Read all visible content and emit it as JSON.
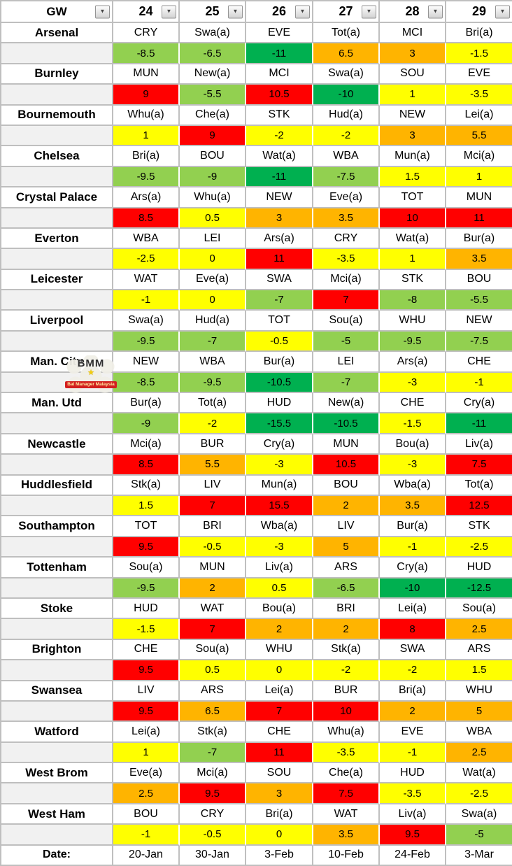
{
  "header": {
    "gw_label": "GW",
    "gameweeks": [
      "24",
      "25",
      "26",
      "27",
      "28",
      "29"
    ],
    "dropdown_icon": "▼"
  },
  "colors": {
    "red": "#FF0000",
    "orange": "#FFB400",
    "yellow": "#FFFF00",
    "light_green": "#92D050",
    "dark_green": "#00B050",
    "spacer_grey": "#F1F1F1",
    "grid_grey": "#BFBFBF"
  },
  "teams": [
    {
      "name": "Arsenal",
      "fixtures": [
        {
          "opp": "CRY",
          "val": "-8.5",
          "level": "light_green"
        },
        {
          "opp": "Swa(a)",
          "val": "-6.5",
          "level": "light_green"
        },
        {
          "opp": "EVE",
          "val": "-11",
          "level": "dark_green"
        },
        {
          "opp": "Tot(a)",
          "val": "6.5",
          "level": "orange"
        },
        {
          "opp": "MCI",
          "val": "3",
          "level": "orange"
        },
        {
          "opp": "Bri(a)",
          "val": "-1.5",
          "level": "yellow"
        }
      ]
    },
    {
      "name": "Burnley",
      "fixtures": [
        {
          "opp": "MUN",
          "val": "9",
          "level": "red"
        },
        {
          "opp": "New(a)",
          "val": "-5.5",
          "level": "light_green"
        },
        {
          "opp": "MCI",
          "val": "10.5",
          "level": "red"
        },
        {
          "opp": "Swa(a)",
          "val": "-10",
          "level": "dark_green"
        },
        {
          "opp": "SOU",
          "val": "1",
          "level": "yellow"
        },
        {
          "opp": "EVE",
          "val": "-3.5",
          "level": "yellow"
        }
      ]
    },
    {
      "name": "Bournemouth",
      "fixtures": [
        {
          "opp": "Whu(a)",
          "val": "1",
          "level": "yellow"
        },
        {
          "opp": "Che(a)",
          "val": "9",
          "level": "red"
        },
        {
          "opp": "STK",
          "val": "-2",
          "level": "yellow"
        },
        {
          "opp": "Hud(a)",
          "val": "-2",
          "level": "yellow"
        },
        {
          "opp": "NEW",
          "val": "3",
          "level": "orange"
        },
        {
          "opp": "Lei(a)",
          "val": "5.5",
          "level": "orange"
        }
      ]
    },
    {
      "name": "Chelsea",
      "fixtures": [
        {
          "opp": "Bri(a)",
          "val": "-9.5",
          "level": "light_green"
        },
        {
          "opp": "BOU",
          "val": "-9",
          "level": "light_green"
        },
        {
          "opp": "Wat(a)",
          "val": "-11",
          "level": "dark_green"
        },
        {
          "opp": "WBA",
          "val": "-7.5",
          "level": "light_green"
        },
        {
          "opp": "Mun(a)",
          "val": "1.5",
          "level": "yellow"
        },
        {
          "opp": "Mci(a)",
          "val": "1",
          "level": "yellow"
        }
      ]
    },
    {
      "name": "Crystal Palace",
      "fixtures": [
        {
          "opp": "Ars(a)",
          "val": "8.5",
          "level": "red"
        },
        {
          "opp": "Whu(a)",
          "val": "0.5",
          "level": "yellow"
        },
        {
          "opp": "NEW",
          "val": "3",
          "level": "orange"
        },
        {
          "opp": "Eve(a)",
          "val": "3.5",
          "level": "orange"
        },
        {
          "opp": "TOT",
          "val": "10",
          "level": "red"
        },
        {
          "opp": "MUN",
          "val": "11",
          "level": "red"
        }
      ]
    },
    {
      "name": "Everton",
      "fixtures": [
        {
          "opp": "WBA",
          "val": "-2.5",
          "level": "yellow"
        },
        {
          "opp": "LEI",
          "val": "0",
          "level": "yellow"
        },
        {
          "opp": "Ars(a)",
          "val": "11",
          "level": "red"
        },
        {
          "opp": "CRY",
          "val": "-3.5",
          "level": "yellow"
        },
        {
          "opp": "Wat(a)",
          "val": "1",
          "level": "yellow"
        },
        {
          "opp": "Bur(a)",
          "val": "3.5",
          "level": "orange"
        }
      ]
    },
    {
      "name": "Leicester",
      "fixtures": [
        {
          "opp": "WAT",
          "val": "-1",
          "level": "yellow"
        },
        {
          "opp": "Eve(a)",
          "val": "0",
          "level": "yellow"
        },
        {
          "opp": "SWA",
          "val": "-7",
          "level": "light_green"
        },
        {
          "opp": "Mci(a)",
          "val": "7",
          "level": "red"
        },
        {
          "opp": "STK",
          "val": "-8",
          "level": "light_green"
        },
        {
          "opp": "BOU",
          "val": "-5.5",
          "level": "light_green"
        }
      ]
    },
    {
      "name": "Liverpool",
      "fixtures": [
        {
          "opp": "Swa(a)",
          "val": "-9.5",
          "level": "light_green"
        },
        {
          "opp": "Hud(a)",
          "val": "-7",
          "level": "light_green"
        },
        {
          "opp": "TOT",
          "val": "-0.5",
          "level": "yellow"
        },
        {
          "opp": "Sou(a)",
          "val": "-5",
          "level": "light_green"
        },
        {
          "opp": "WHU",
          "val": "-9.5",
          "level": "light_green"
        },
        {
          "opp": "NEW",
          "val": "-7.5",
          "level": "light_green"
        }
      ]
    },
    {
      "name": "Man. City",
      "fixtures": [
        {
          "opp": "NEW",
          "val": "-8.5",
          "level": "light_green"
        },
        {
          "opp": "WBA",
          "val": "-9.5",
          "level": "light_green"
        },
        {
          "opp": "Bur(a)",
          "val": "-10.5",
          "level": "dark_green"
        },
        {
          "opp": "LEI",
          "val": "-7",
          "level": "light_green"
        },
        {
          "opp": "Ars(a)",
          "val": "-3",
          "level": "yellow"
        },
        {
          "opp": "CHE",
          "val": "-1",
          "level": "yellow"
        }
      ]
    },
    {
      "name": "Man. Utd",
      "fixtures": [
        {
          "opp": "Bur(a)",
          "val": "-9",
          "level": "light_green"
        },
        {
          "opp": "Tot(a)",
          "val": "-2",
          "level": "yellow"
        },
        {
          "opp": "HUD",
          "val": "-15.5",
          "level": "dark_green"
        },
        {
          "opp": "New(a)",
          "val": "-10.5",
          "level": "dark_green"
        },
        {
          "opp": "CHE",
          "val": "-1.5",
          "level": "yellow"
        },
        {
          "opp": "Cry(a)",
          "val": "-11",
          "level": "dark_green"
        }
      ]
    },
    {
      "name": "Newcastle",
      "fixtures": [
        {
          "opp": "Mci(a)",
          "val": "8.5",
          "level": "red"
        },
        {
          "opp": "BUR",
          "val": "5.5",
          "level": "orange"
        },
        {
          "opp": "Cry(a)",
          "val": "-3",
          "level": "yellow"
        },
        {
          "opp": "MUN",
          "val": "10.5",
          "level": "red"
        },
        {
          "opp": "Bou(a)",
          "val": "-3",
          "level": "yellow"
        },
        {
          "opp": "Liv(a)",
          "val": "7.5",
          "level": "red"
        }
      ]
    },
    {
      "name": "Huddlesfield",
      "fixtures": [
        {
          "opp": "Stk(a)",
          "val": "1.5",
          "level": "yellow"
        },
        {
          "opp": "LIV",
          "val": "7",
          "level": "red"
        },
        {
          "opp": "Mun(a)",
          "val": "15.5",
          "level": "red"
        },
        {
          "opp": "BOU",
          "val": "2",
          "level": "orange"
        },
        {
          "opp": "Wba(a)",
          "val": "3.5",
          "level": "orange"
        },
        {
          "opp": "Tot(a)",
          "val": "12.5",
          "level": "red"
        }
      ]
    },
    {
      "name": "Southampton",
      "fixtures": [
        {
          "opp": "TOT",
          "val": "9.5",
          "level": "red"
        },
        {
          "opp": "BRI",
          "val": "-0.5",
          "level": "yellow"
        },
        {
          "opp": "Wba(a)",
          "val": "-3",
          "level": "yellow"
        },
        {
          "opp": "LIV",
          "val": "5",
          "level": "orange"
        },
        {
          "opp": "Bur(a)",
          "val": "-1",
          "level": "yellow"
        },
        {
          "opp": "STK",
          "val": "-2.5",
          "level": "yellow"
        }
      ]
    },
    {
      "name": "Tottenham",
      "fixtures": [
        {
          "opp": "Sou(a)",
          "val": "-9.5",
          "level": "light_green"
        },
        {
          "opp": "MUN",
          "val": "2",
          "level": "orange"
        },
        {
          "opp": "Liv(a)",
          "val": "0.5",
          "level": "yellow"
        },
        {
          "opp": "ARS",
          "val": "-6.5",
          "level": "light_green"
        },
        {
          "opp": "Cry(a)",
          "val": "-10",
          "level": "dark_green"
        },
        {
          "opp": "HUD",
          "val": "-12.5",
          "level": "dark_green"
        }
      ]
    },
    {
      "name": "Stoke",
      "fixtures": [
        {
          "opp": "HUD",
          "val": "-1.5",
          "level": "yellow"
        },
        {
          "opp": "WAT",
          "val": "7",
          "level": "red"
        },
        {
          "opp": "Bou(a)",
          "val": "2",
          "level": "orange"
        },
        {
          "opp": "BRI",
          "val": "2",
          "level": "orange"
        },
        {
          "opp": "Lei(a)",
          "val": "8",
          "level": "red"
        },
        {
          "opp": "Sou(a)",
          "val": "2.5",
          "level": "orange"
        }
      ]
    },
    {
      "name": "Brighton",
      "fixtures": [
        {
          "opp": "CHE",
          "val": "9.5",
          "level": "red"
        },
        {
          "opp": "Sou(a)",
          "val": "0.5",
          "level": "yellow"
        },
        {
          "opp": "WHU",
          "val": "0",
          "level": "yellow"
        },
        {
          "opp": "Stk(a)",
          "val": "-2",
          "level": "yellow"
        },
        {
          "opp": "SWA",
          "val": "-2",
          "level": "yellow"
        },
        {
          "opp": "ARS",
          "val": "1.5",
          "level": "yellow"
        }
      ]
    },
    {
      "name": "Swansea",
      "fixtures": [
        {
          "opp": "LIV",
          "val": "9.5",
          "level": "red"
        },
        {
          "opp": "ARS",
          "val": "6.5",
          "level": "orange"
        },
        {
          "opp": "Lei(a)",
          "val": "7",
          "level": "red"
        },
        {
          "opp": "BUR",
          "val": "10",
          "level": "red"
        },
        {
          "opp": "Bri(a)",
          "val": "2",
          "level": "orange"
        },
        {
          "opp": "WHU",
          "val": "5",
          "level": "orange"
        }
      ]
    },
    {
      "name": "Watford",
      "fixtures": [
        {
          "opp": "Lei(a)",
          "val": "1",
          "level": "yellow"
        },
        {
          "opp": "Stk(a)",
          "val": "-7",
          "level": "light_green"
        },
        {
          "opp": "CHE",
          "val": "11",
          "level": "red"
        },
        {
          "opp": "Whu(a)",
          "val": "-3.5",
          "level": "yellow"
        },
        {
          "opp": "EVE",
          "val": "-1",
          "level": "yellow"
        },
        {
          "opp": "WBA",
          "val": "2.5",
          "level": "orange"
        }
      ]
    },
    {
      "name": "West Brom",
      "fixtures": [
        {
          "opp": "Eve(a)",
          "val": "2.5",
          "level": "orange"
        },
        {
          "opp": "Mci(a)",
          "val": "9.5",
          "level": "red"
        },
        {
          "opp": "SOU",
          "val": "3",
          "level": "orange"
        },
        {
          "opp": "Che(a)",
          "val": "7.5",
          "level": "red"
        },
        {
          "opp": "HUD",
          "val": "-3.5",
          "level": "yellow"
        },
        {
          "opp": "Wat(a)",
          "val": "-2.5",
          "level": "yellow"
        }
      ]
    },
    {
      "name": "West Ham",
      "fixtures": [
        {
          "opp": "BOU",
          "val": "-1",
          "level": "yellow"
        },
        {
          "opp": "CRY",
          "val": "-0.5",
          "level": "yellow"
        },
        {
          "opp": "Bri(a)",
          "val": "0",
          "level": "yellow"
        },
        {
          "opp": "WAT",
          "val": "3.5",
          "level": "orange"
        },
        {
          "opp": "Liv(a)",
          "val": "9.5",
          "level": "red"
        },
        {
          "opp": "Swa(a)",
          "val": "-5",
          "level": "light_green"
        }
      ]
    }
  ],
  "footer": {
    "label": "Date:",
    "dates": [
      "20-Jan",
      "30-Jan",
      "3-Feb",
      "10-Feb",
      "24-Feb",
      "3-Mar"
    ]
  },
  "watermark": {
    "title": "BMM",
    "star": "★",
    "ribbon": "Bal Manager Malaysia"
  }
}
